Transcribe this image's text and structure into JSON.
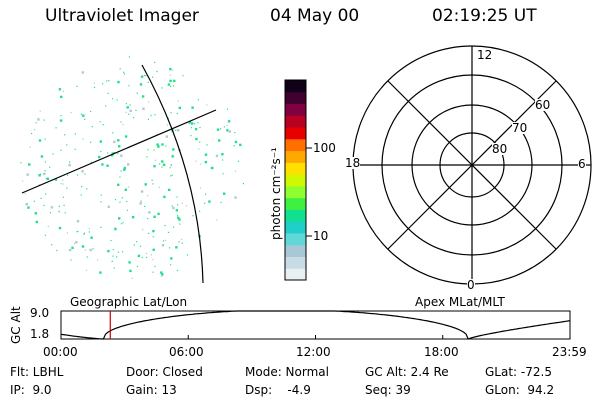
{
  "header": {
    "instrument": "Ultraviolet Imager",
    "date": "04 May 00",
    "time": "02:19:25 UT"
  },
  "colorbar": {
    "unit_label": "photon cm⁻²s⁻¹",
    "tick_100": "100",
    "tick_10": "10"
  },
  "panels": {
    "left_label": "Geographic Lat/Lon",
    "right_label": "Apex MLat/MLT"
  },
  "polar": {
    "mlt_12": "12",
    "mlt_18": "18",
    "mlt_6": "6",
    "mlt_0": "0",
    "lat_60": "60",
    "lat_70": "70",
    "lat_80": "80"
  },
  "altplot": {
    "ylabel": "GC Alt",
    "ytick_top": "9.0",
    "ytick_bottom": "1.8",
    "x_ticks": [
      "00:00",
      "06:00",
      "12:00",
      "18:00",
      "23:59"
    ],
    "marker_time": "02:19:25"
  },
  "footer": {
    "flt": "Flt: LBHL",
    "ip": "IP:  9.0",
    "door": "Door: Closed",
    "gain": "Gain: 13",
    "mode": "Mode: Normal",
    "dsp": "Dsp:    -4.9",
    "gcalt": "GC Alt: 2.4 Re",
    "seq": "Seq: 39",
    "glat": "GLat: -72.5",
    "glon": "GLon:  94.2"
  },
  "colors": {
    "noise": "#22e08a",
    "marker": "#cc0000",
    "colorbar": [
      "#e8f0f4",
      "#c8dce6",
      "#a8c8d6",
      "#60d8d8",
      "#20d0c8",
      "#10e090",
      "#40f040",
      "#90ff30",
      "#d0f800",
      "#ffe000",
      "#ffa800",
      "#ff7000",
      "#e80000",
      "#b80020",
      "#800040",
      "#400030",
      "#100018"
    ]
  }
}
